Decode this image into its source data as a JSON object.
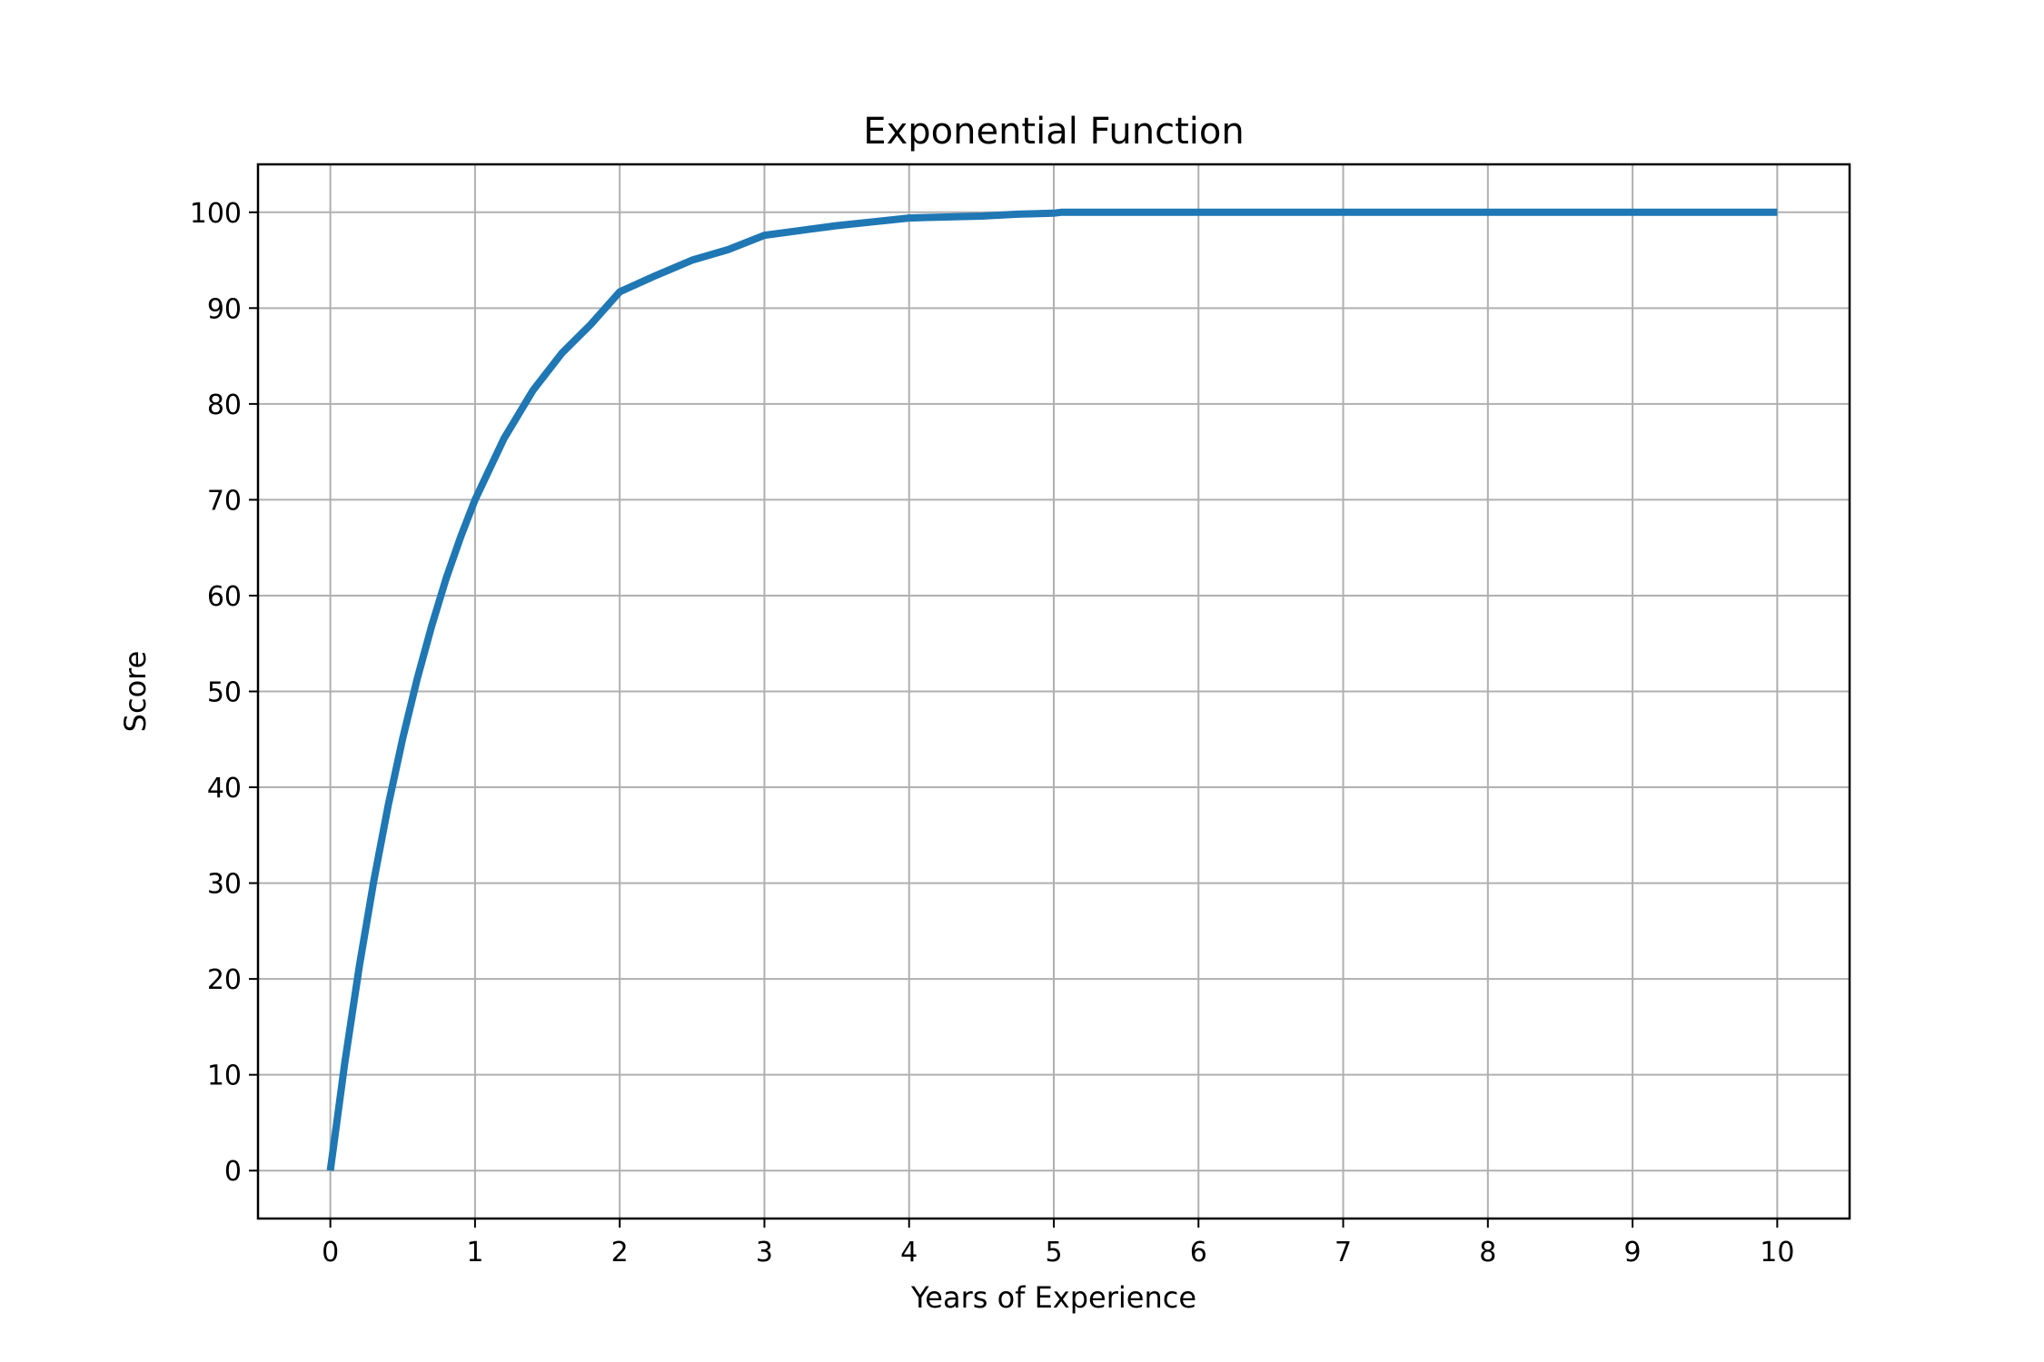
{
  "chart_data": {
    "type": "line",
    "title": "Exponential Function",
    "xlabel": "Years of Experience",
    "ylabel": "Score",
    "xlim": [
      -0.5,
      10.5
    ],
    "ylim": [
      -5,
      105
    ],
    "xticks": [
      0,
      1,
      2,
      3,
      4,
      5,
      6,
      7,
      8,
      9,
      10
    ],
    "yticks": [
      0,
      10,
      20,
      30,
      40,
      50,
      60,
      70,
      80,
      90,
      100
    ],
    "grid": true,
    "colors": {
      "series": "#1f77b4",
      "grid": "#b0b0b0",
      "frame": "#000000"
    },
    "series": [
      {
        "x": [
          0,
          0.1,
          0.2,
          0.3,
          0.4,
          0.5,
          0.6,
          0.7,
          0.8,
          0.9,
          1.0,
          1.2,
          1.4,
          1.6,
          1.8,
          2.0,
          2.25,
          2.5,
          2.75,
          3.0,
          3.25,
          3.5,
          3.75,
          4.0,
          4.25,
          4.5,
          4.75,
          5.0,
          5.05,
          6,
          7,
          8,
          9,
          10
        ],
        "values": [
          0,
          11.3,
          21.3,
          30.2,
          38.1,
          45.1,
          51.3,
          56.8,
          61.8,
          66.1,
          70.0,
          76.4,
          81.4,
          85.3,
          88.3,
          91.7,
          93.4,
          95.0,
          96.1,
          97.6,
          98.1,
          98.6,
          99.0,
          99.4,
          99.5,
          99.6,
          99.8,
          99.9,
          100,
          100,
          100,
          100,
          100,
          100
        ]
      }
    ]
  }
}
